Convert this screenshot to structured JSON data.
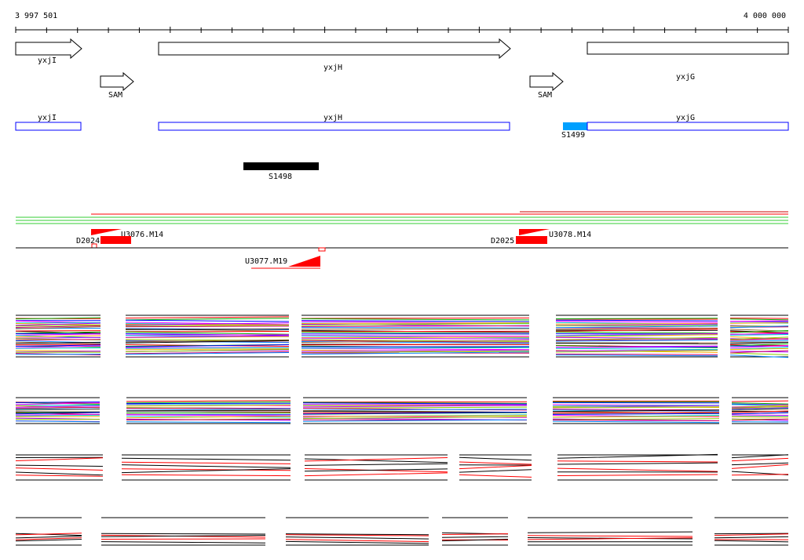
{
  "ruler": {
    "start_label": "3 997 501",
    "end_label": "4 000 000"
  },
  "genes": [
    {
      "name": "yxjI",
      "strand": "+"
    },
    {
      "name": "yxjH",
      "strand": "+"
    },
    {
      "name": "yxjG",
      "strand": "+"
    }
  ],
  "riboswitches": [
    {
      "name": "SAM",
      "strand": "+"
    },
    {
      "name": "SAM",
      "strand": "+"
    }
  ],
  "transcripts": [
    {
      "name": "yxjI",
      "color": "#0000ff"
    },
    {
      "name": "yxjH",
      "color": "#0000ff"
    },
    {
      "name": "yxjG",
      "color": "#0000ff"
    }
  ],
  "segment_highlight": {
    "name": "S1499",
    "color": "#00a0ff"
  },
  "segment_black": {
    "name": "S1498",
    "color": "#000000"
  },
  "upshifts": [
    {
      "name": "U3076.M14",
      "color": "#ff0000"
    },
    {
      "name": "U3078.M14",
      "color": "#ff0000"
    },
    {
      "name": "U3077.M19",
      "color": "#ff0000"
    }
  ],
  "downshifts": [
    {
      "name": "D2024",
      "color": "#ff0000"
    },
    {
      "name": "D2025",
      "color": "#ff0000"
    }
  ],
  "expression_panels": {
    "tracks": 4,
    "line_colors": [
      "#ff0000",
      "#00aa00",
      "#0000ff",
      "#ff00ff",
      "#00cccc",
      "#ffaa00",
      "#aa00ff",
      "#88cc00",
      "#cc0066",
      "#0088ff",
      "#996633",
      "#000000"
    ]
  }
}
